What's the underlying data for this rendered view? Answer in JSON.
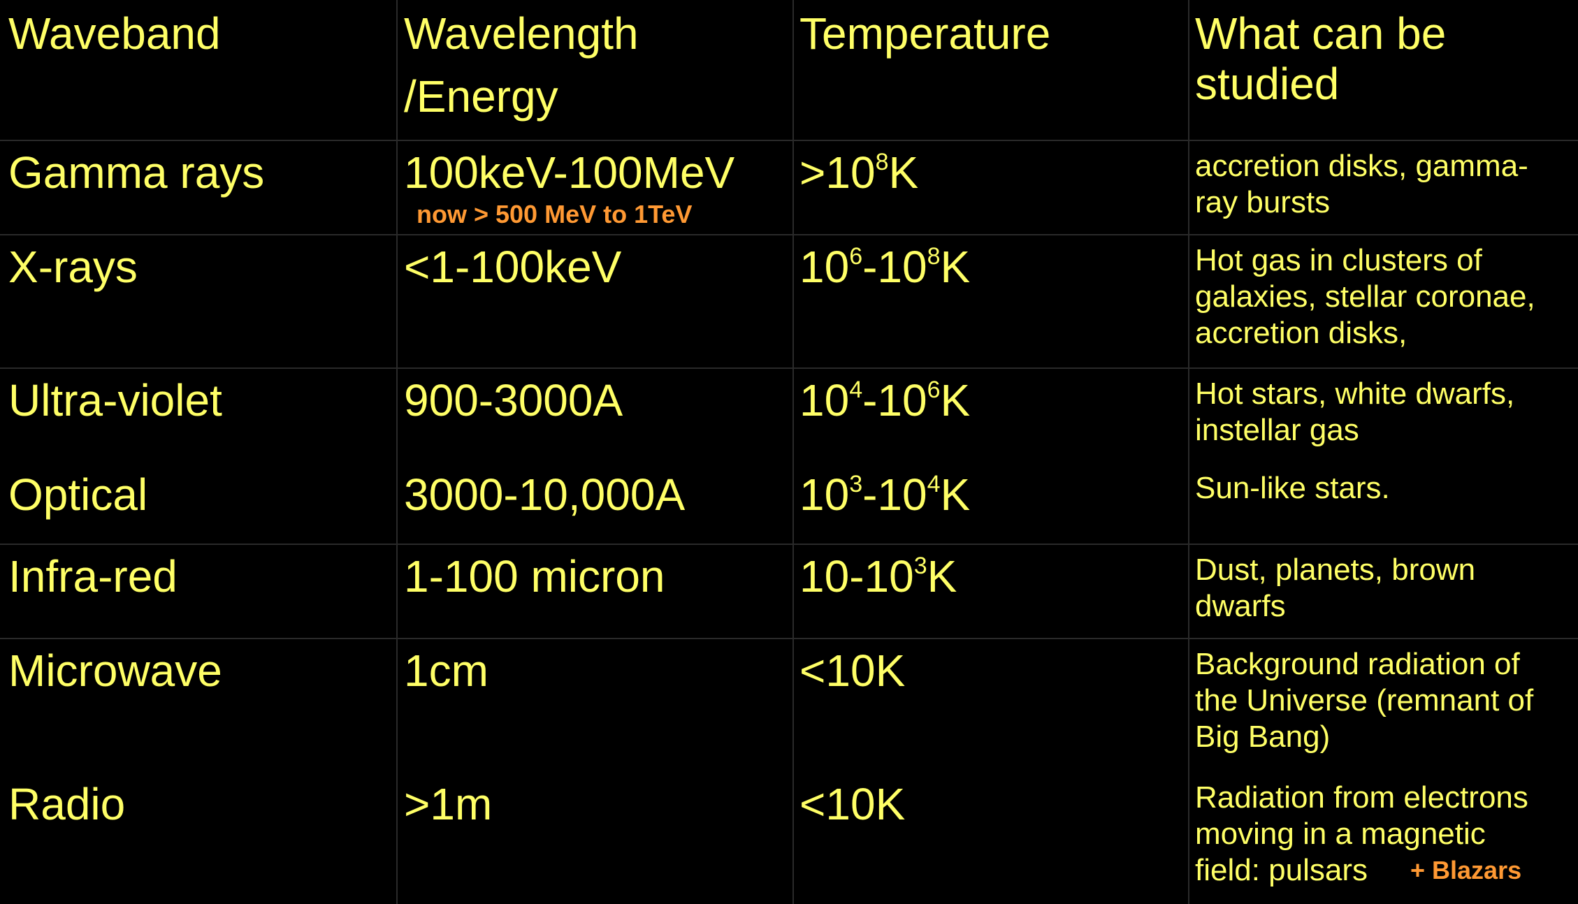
{
  "headers": {
    "waveband": "Waveband",
    "wavelength_line1": "Wavelength",
    "wavelength_line2": "/Energy",
    "temperature": "Temperature",
    "studied_line1": "What can be",
    "studied_line2": "studied"
  },
  "rows": [
    {
      "waveband": "Gamma rays",
      "wavelength": "100keV-100MeV",
      "wavelength_note": "now > 500 MeV to 1TeV",
      "temp_prefix": ">10",
      "temp_exp": "8",
      "temp_suffix": "K",
      "studied": [
        "accretion disks, gamma-",
        "ray bursts"
      ]
    },
    {
      "waveband": "X-rays",
      "wavelength": "<1-100keV",
      "temp_a": "10",
      "temp_a_exp": "6",
      "temp_mid": "-10",
      "temp_b_exp": "8",
      "temp_suffix": "K",
      "studied": [
        "Hot gas in clusters of",
        "galaxies, stellar coronae,",
        "accretion disks,"
      ]
    },
    {
      "waveband": "Ultra-violet",
      "wavelength": "900-3000A",
      "temp_a": "10",
      "temp_a_exp": "4",
      "temp_mid": "-10",
      "temp_b_exp": "6",
      "temp_suffix": "K",
      "studied": [
        "Hot stars, white dwarfs,",
        "instellar gas"
      ]
    },
    {
      "waveband": "Optical",
      "wavelength": "3000-10,000A",
      "temp_a": "10",
      "temp_a_exp": "3",
      "temp_mid": "-10",
      "temp_b_exp": "4",
      "temp_suffix": "K",
      "studied": [
        "Sun-like stars."
      ]
    },
    {
      "waveband": "Infra-red",
      "wavelength": "1-100 micron",
      "temp_prefix": "10-10",
      "temp_exp": "3",
      "temp_suffix": "K",
      "studied": [
        "Dust, planets, brown",
        "dwarfs"
      ]
    },
    {
      "waveband": "Microwave",
      "wavelength": "1cm",
      "temperature": "<10K",
      "studied": [
        "Background radiation of",
        "the Universe (remnant of",
        "Big Bang)"
      ]
    },
    {
      "waveband": "Radio",
      "wavelength": ">1m",
      "temperature": "<10K",
      "studied": [
        "Radiation from electrons",
        "moving in a magnetic",
        "field: pulsars"
      ],
      "studied_note": "+ Blazars"
    }
  ],
  "colors": {
    "text": "#ffff66",
    "note": "#ff9933",
    "background": "#000000",
    "grid": "#2a2a2a"
  }
}
